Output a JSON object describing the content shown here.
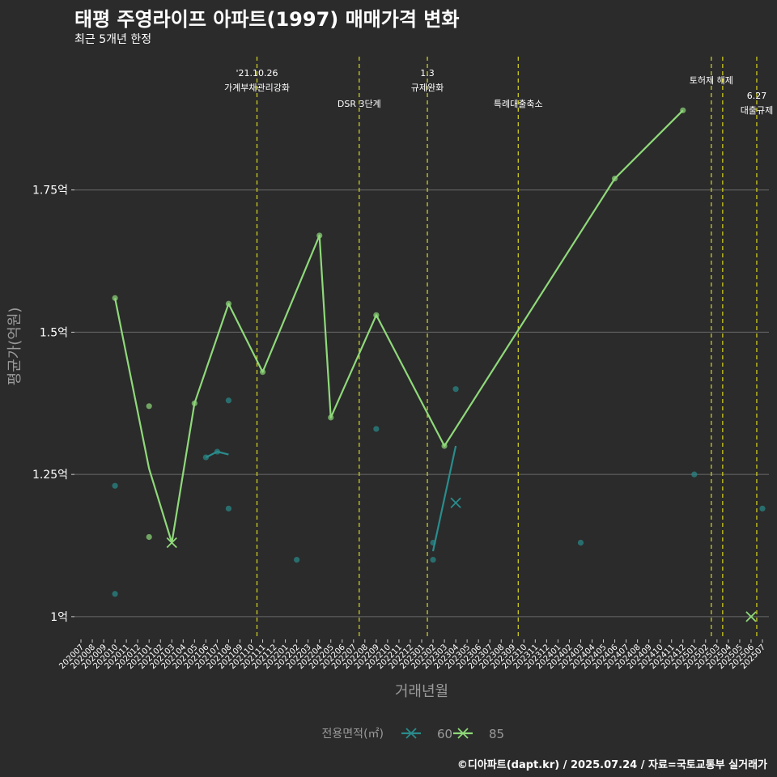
{
  "chart_data": {
    "type": "line",
    "title": "태평 주영라이프 아파트(1997) 매매가격 변화",
    "subtitle": "최근 5개년 한정",
    "xlabel": "거래년월",
    "ylabel": "평균가(억원)",
    "caption": "©디아파트(dapt.kr) / 2025.07.24 / 자료=국토교통부 실거래가",
    "ylim": [
      0.96,
      1.99
    ],
    "yticks": [
      1.0,
      1.25,
      1.5,
      1.75
    ],
    "ytick_labels": [
      "1억",
      "1.25억",
      "1.5억",
      "1.75억"
    ],
    "categories": [
      "202007",
      "202008",
      "202009",
      "202010",
      "202011",
      "202012",
      "202101",
      "202102",
      "202103",
      "202104",
      "202105",
      "202106",
      "202107",
      "202108",
      "202109",
      "202110",
      "202111",
      "202112",
      "202201",
      "202202",
      "202203",
      "202204",
      "202205",
      "202206",
      "202207",
      "202208",
      "202209",
      "202210",
      "202211",
      "202212",
      "202301",
      "202302",
      "202303",
      "202304",
      "202305",
      "202306",
      "202307",
      "202308",
      "202309",
      "202310",
      "202311",
      "202312",
      "202401",
      "202402",
      "202403",
      "202404",
      "202405",
      "202406",
      "202407",
      "202408",
      "202409",
      "202410",
      "202411",
      "202412",
      "202501",
      "202502",
      "202503",
      "202504",
      "202505",
      "202506",
      "202507"
    ],
    "legend_title": "전용면적(㎡)",
    "legend_position": "bottom",
    "series": [
      {
        "name": "60",
        "color": "#2a8c8c",
        "line": [
          [
            "202106",
            1.28
          ],
          [
            "202107",
            1.29
          ],
          [
            "202108",
            1.285
          ]
        ],
        "line2": [
          [
            "202302",
            1.115
          ],
          [
            "202304",
            1.3
          ]
        ],
        "points": [
          [
            "202010",
            1.23
          ],
          [
            "202010",
            1.04
          ],
          [
            "202106",
            1.28
          ],
          [
            "202107",
            1.29
          ],
          [
            "202108",
            1.38
          ],
          [
            "202108",
            1.19
          ],
          [
            "202202",
            1.1
          ],
          [
            "202209",
            1.33
          ],
          [
            "202302",
            1.13
          ],
          [
            "202302",
            1.1
          ],
          [
            "202304",
            1.4
          ],
          [
            "202403",
            1.13
          ],
          [
            "202501",
            1.25
          ],
          [
            "202507",
            1.19
          ]
        ],
        "x_markers": [
          [
            "202304",
            1.2
          ]
        ]
      },
      {
        "name": "85",
        "color": "#8fd97a",
        "line": [
          [
            "202010",
            1.56
          ],
          [
            "202101",
            1.26
          ],
          [
            "202103",
            1.13
          ],
          [
            "202105",
            1.375
          ],
          [
            "202108",
            1.55
          ],
          [
            "202111",
            1.43
          ],
          [
            "202204",
            1.67
          ],
          [
            "202205",
            1.35
          ],
          [
            "202209",
            1.53
          ],
          [
            "202303",
            1.3
          ],
          [
            "202406",
            1.77
          ],
          [
            "202412",
            1.89
          ]
        ],
        "points": [
          [
            "202010",
            1.56
          ],
          [
            "202101",
            1.37
          ],
          [
            "202101",
            1.14
          ],
          [
            "202105",
            1.375
          ],
          [
            "202108",
            1.55
          ],
          [
            "202111",
            1.43
          ],
          [
            "202204",
            1.67
          ],
          [
            "202205",
            1.35
          ],
          [
            "202209",
            1.53
          ],
          [
            "202303",
            1.3
          ],
          [
            "202406",
            1.77
          ],
          [
            "202412",
            1.89
          ]
        ],
        "x_markers": [
          [
            "202103",
            1.13
          ],
          [
            "202506",
            1.0
          ]
        ]
      }
    ],
    "events": [
      {
        "x": 202110.5,
        "lines": [
          "'21.10.26",
          "가계부채관리강화"
        ],
        "level": "top"
      },
      {
        "x": 202207.5,
        "lines": [
          "DSR 3단계"
        ],
        "level": "mid"
      },
      {
        "x": 202301.5,
        "lines": [
          "1.3",
          "규제완화"
        ],
        "level": "top"
      },
      {
        "x": 202309.5,
        "lines": [
          "특례대출축소"
        ],
        "level": "mid"
      },
      {
        "x": 202502.5,
        "lines": [
          "토허제 해제"
        ],
        "level": "single"
      },
      {
        "x": 202503.5,
        "lines": [],
        "level": "none"
      },
      {
        "x": 202506.5,
        "lines": [
          "6.27",
          "대출규제"
        ],
        "level": "low"
      }
    ]
  }
}
